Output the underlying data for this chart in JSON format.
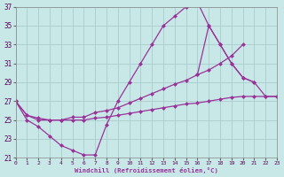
{
  "bg_color": "#c8e8e8",
  "grid_color": "#aacccc",
  "line_color": "#993399",
  "xlim": [
    0,
    23
  ],
  "ylim": [
    21,
    37
  ],
  "ytick_vals": [
    21,
    23,
    25,
    27,
    29,
    31,
    33,
    35,
    37
  ],
  "xtick_vals": [
    0,
    1,
    2,
    3,
    4,
    5,
    6,
    7,
    8,
    9,
    10,
    11,
    12,
    13,
    14,
    15,
    16,
    17,
    18,
    19,
    20,
    21,
    22,
    23
  ],
  "xlabel": "Windchill (Refroidissement éolien,°C)",
  "curve1": {
    "x": [
      0,
      1,
      2,
      3,
      4,
      5,
      6,
      7,
      8,
      9,
      10,
      11,
      12,
      13,
      14,
      15,
      16,
      17,
      18,
      19,
      20,
      21
    ],
    "y": [
      27,
      25,
      24.3,
      23.3,
      22.3,
      21.8,
      21.3,
      21.3,
      24.5,
      27,
      29,
      31,
      33,
      35,
      36,
      37,
      37.5,
      35,
      33,
      31,
      29.5,
      29
    ]
  },
  "curve2": {
    "x": [
      0,
      1,
      2,
      3,
      4,
      5,
      6,
      7,
      8,
      9,
      10,
      11,
      12,
      13,
      14,
      15,
      16,
      17,
      18,
      19,
      20
    ],
    "y": [
      27,
      25.5,
      25,
      25,
      25,
      25.3,
      25.3,
      25.8,
      26,
      26.3,
      26.8,
      27.3,
      27.8,
      28.3,
      28.8,
      29.2,
      29.8,
      30.3,
      31,
      31.8,
      33
    ]
  },
  "curve3": {
    "x": [
      0,
      1,
      2,
      3,
      4,
      5,
      6,
      7,
      8,
      9,
      10,
      11,
      12,
      13,
      14,
      15,
      16,
      17,
      18,
      19,
      20,
      21,
      22,
      23
    ],
    "y": [
      27,
      25.5,
      25.2,
      25,
      25,
      25,
      25,
      25.2,
      25.3,
      25.5,
      25.7,
      25.9,
      26.1,
      26.3,
      26.5,
      26.7,
      26.8,
      27,
      27.2,
      27.4,
      27.5,
      27.5,
      27.5,
      27.5
    ]
  },
  "curve4": {
    "x": [
      16,
      17,
      18,
      19,
      20,
      21,
      22,
      23
    ],
    "y": [
      29.8,
      35,
      33,
      31,
      29.5,
      29,
      27.5,
      27.5
    ]
  }
}
